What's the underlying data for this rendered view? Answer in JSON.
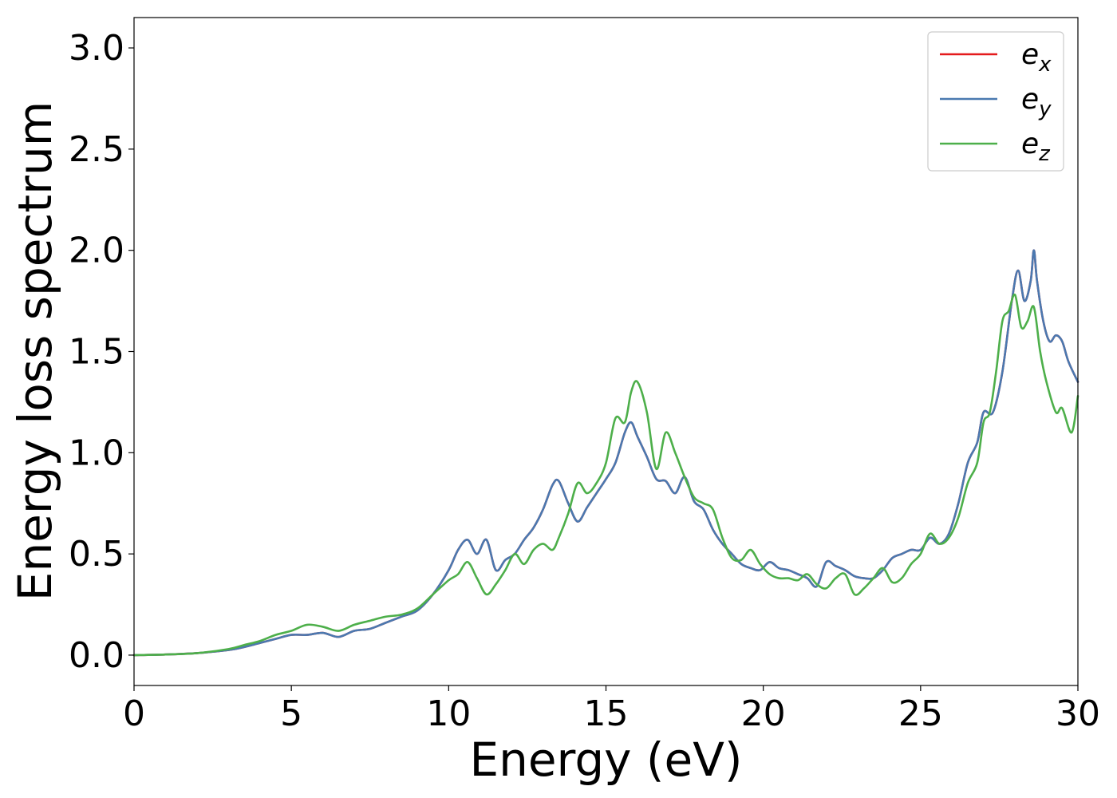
{
  "chart_data": {
    "type": "line",
    "title": "",
    "xlabel": "Energy (eV)",
    "ylabel": "Energy loss spectrum",
    "xlim": [
      0,
      30
    ],
    "ylim": [
      -0.15,
      3.15
    ],
    "xticks": [
      0,
      5,
      10,
      15,
      20,
      25,
      30
    ],
    "yticks": [
      0.0,
      0.5,
      1.0,
      1.5,
      2.0,
      2.5,
      3.0
    ],
    "xtick_labels": [
      "0",
      "5",
      "10",
      "15",
      "20",
      "25",
      "30"
    ],
    "ytick_labels": [
      "0.0",
      "0.5",
      "1.0",
      "1.5",
      "2.0",
      "2.5",
      "3.0"
    ],
    "grid": false,
    "legend_position": "top-right",
    "series": [
      {
        "name": "e",
        "subscript": "x",
        "color": "#e41a1c",
        "x": [
          0,
          1,
          2,
          3,
          3.5,
          4,
          4.5,
          5,
          5.5,
          6,
          6.5,
          7,
          7.5,
          8,
          8.5,
          9,
          9.5,
          10,
          10.3,
          10.6,
          10.9,
          11.2,
          11.5,
          11.8,
          12.1,
          12.4,
          12.7,
          13,
          13.3,
          13.5,
          13.8,
          14.1,
          14.4,
          14.7,
          15,
          15.3,
          15.6,
          15.8,
          16,
          16.3,
          16.6,
          16.9,
          17.2,
          17.5,
          17.8,
          18.1,
          18.4,
          18.7,
          19,
          19.3,
          19.6,
          19.9,
          20.2,
          20.5,
          20.8,
          21.1,
          21.4,
          21.7,
          22,
          22.3,
          22.6,
          22.9,
          23.2,
          23.5,
          23.8,
          24.1,
          24.4,
          24.7,
          25,
          25.3,
          25.6,
          25.9,
          26.2,
          26.5,
          26.8,
          27,
          27.3,
          27.6,
          27.9,
          28.1,
          28.3,
          28.5,
          28.6,
          28.7,
          28.9,
          29.1,
          29.3,
          29.5,
          29.7,
          30
        ],
        "y": [
          0,
          0.003,
          0.01,
          0.025,
          0.04,
          0.06,
          0.08,
          0.1,
          0.1,
          0.11,
          0.09,
          0.12,
          0.13,
          0.16,
          0.19,
          0.22,
          0.3,
          0.42,
          0.52,
          0.57,
          0.5,
          0.57,
          0.42,
          0.47,
          0.5,
          0.57,
          0.63,
          0.72,
          0.84,
          0.86,
          0.75,
          0.66,
          0.73,
          0.8,
          0.87,
          0.95,
          1.1,
          1.15,
          1.08,
          0.98,
          0.87,
          0.86,
          0.8,
          0.88,
          0.76,
          0.72,
          0.62,
          0.55,
          0.5,
          0.45,
          0.43,
          0.42,
          0.46,
          0.43,
          0.42,
          0.4,
          0.38,
          0.34,
          0.46,
          0.44,
          0.42,
          0.39,
          0.38,
          0.38,
          0.42,
          0.48,
          0.5,
          0.52,
          0.52,
          0.58,
          0.55,
          0.6,
          0.75,
          0.95,
          1.05,
          1.2,
          1.2,
          1.4,
          1.75,
          1.9,
          1.75,
          1.85,
          2.0,
          1.85,
          1.65,
          1.55,
          1.58,
          1.55,
          1.45,
          1.35
        ]
      },
      {
        "name": "e",
        "subscript": "y",
        "color": "#4a79b0",
        "x": [
          0,
          1,
          2,
          3,
          3.5,
          4,
          4.5,
          5,
          5.5,
          6,
          6.5,
          7,
          7.5,
          8,
          8.5,
          9,
          9.5,
          10,
          10.3,
          10.6,
          10.9,
          11.2,
          11.5,
          11.8,
          12.1,
          12.4,
          12.7,
          13,
          13.3,
          13.5,
          13.8,
          14.1,
          14.4,
          14.7,
          15,
          15.3,
          15.6,
          15.8,
          16,
          16.3,
          16.6,
          16.9,
          17.2,
          17.5,
          17.8,
          18.1,
          18.4,
          18.7,
          19,
          19.3,
          19.6,
          19.9,
          20.2,
          20.5,
          20.8,
          21.1,
          21.4,
          21.7,
          22,
          22.3,
          22.6,
          22.9,
          23.2,
          23.5,
          23.8,
          24.1,
          24.4,
          24.7,
          25,
          25.3,
          25.6,
          25.9,
          26.2,
          26.5,
          26.8,
          27,
          27.3,
          27.6,
          27.9,
          28.1,
          28.3,
          28.5,
          28.6,
          28.7,
          28.9,
          29.1,
          29.3,
          29.5,
          29.7,
          30
        ],
        "y": [
          0,
          0.003,
          0.01,
          0.025,
          0.04,
          0.06,
          0.08,
          0.1,
          0.1,
          0.11,
          0.09,
          0.12,
          0.13,
          0.16,
          0.19,
          0.22,
          0.3,
          0.42,
          0.52,
          0.57,
          0.5,
          0.57,
          0.42,
          0.47,
          0.5,
          0.57,
          0.63,
          0.72,
          0.84,
          0.86,
          0.75,
          0.66,
          0.73,
          0.8,
          0.87,
          0.95,
          1.1,
          1.15,
          1.08,
          0.98,
          0.87,
          0.86,
          0.8,
          0.88,
          0.76,
          0.72,
          0.62,
          0.55,
          0.5,
          0.45,
          0.43,
          0.42,
          0.46,
          0.43,
          0.42,
          0.4,
          0.38,
          0.34,
          0.46,
          0.44,
          0.42,
          0.39,
          0.38,
          0.38,
          0.42,
          0.48,
          0.5,
          0.52,
          0.52,
          0.58,
          0.55,
          0.6,
          0.75,
          0.95,
          1.05,
          1.2,
          1.2,
          1.4,
          1.75,
          1.9,
          1.75,
          1.85,
          2.0,
          1.85,
          1.65,
          1.55,
          1.58,
          1.55,
          1.45,
          1.35
        ]
      },
      {
        "name": "e",
        "subscript": "z",
        "color": "#4daf4a",
        "x": [
          0,
          1,
          2,
          3,
          3.5,
          4,
          4.5,
          5,
          5.5,
          6,
          6.5,
          7,
          7.5,
          8,
          8.5,
          9,
          9.5,
          10,
          10.3,
          10.6,
          10.9,
          11.2,
          11.5,
          11.8,
          12.1,
          12.4,
          12.7,
          13,
          13.3,
          13.5,
          13.8,
          14.1,
          14.4,
          14.7,
          15,
          15.3,
          15.6,
          15.8,
          16,
          16.3,
          16.6,
          16.9,
          17.2,
          17.5,
          17.8,
          18.1,
          18.4,
          18.7,
          19,
          19.3,
          19.6,
          19.9,
          20.2,
          20.5,
          20.8,
          21.1,
          21.4,
          21.7,
          22,
          22.3,
          22.6,
          22.9,
          23.2,
          23.5,
          23.8,
          24.1,
          24.4,
          24.7,
          25,
          25.3,
          25.6,
          25.9,
          26.2,
          26.5,
          26.8,
          27,
          27.2,
          27.4,
          27.6,
          27.8,
          28,
          28.2,
          28.4,
          28.6,
          28.8,
          29,
          29.3,
          29.5,
          29.8,
          30
        ],
        "y": [
          0,
          0.003,
          0.01,
          0.03,
          0.05,
          0.07,
          0.1,
          0.12,
          0.15,
          0.14,
          0.12,
          0.15,
          0.17,
          0.19,
          0.2,
          0.23,
          0.3,
          0.37,
          0.4,
          0.46,
          0.38,
          0.3,
          0.35,
          0.42,
          0.5,
          0.45,
          0.52,
          0.55,
          0.52,
          0.58,
          0.7,
          0.85,
          0.8,
          0.85,
          0.95,
          1.17,
          1.15,
          1.3,
          1.35,
          1.2,
          0.92,
          1.1,
          1.0,
          0.88,
          0.78,
          0.75,
          0.72,
          0.58,
          0.48,
          0.47,
          0.52,
          0.45,
          0.4,
          0.38,
          0.38,
          0.37,
          0.4,
          0.35,
          0.33,
          0.38,
          0.4,
          0.3,
          0.33,
          0.38,
          0.43,
          0.36,
          0.38,
          0.45,
          0.5,
          0.6,
          0.55,
          0.58,
          0.68,
          0.85,
          0.95,
          1.15,
          1.2,
          1.4,
          1.65,
          1.7,
          1.78,
          1.62,
          1.65,
          1.72,
          1.5,
          1.35,
          1.2,
          1.22,
          1.1,
          1.28
        ]
      }
    ]
  }
}
